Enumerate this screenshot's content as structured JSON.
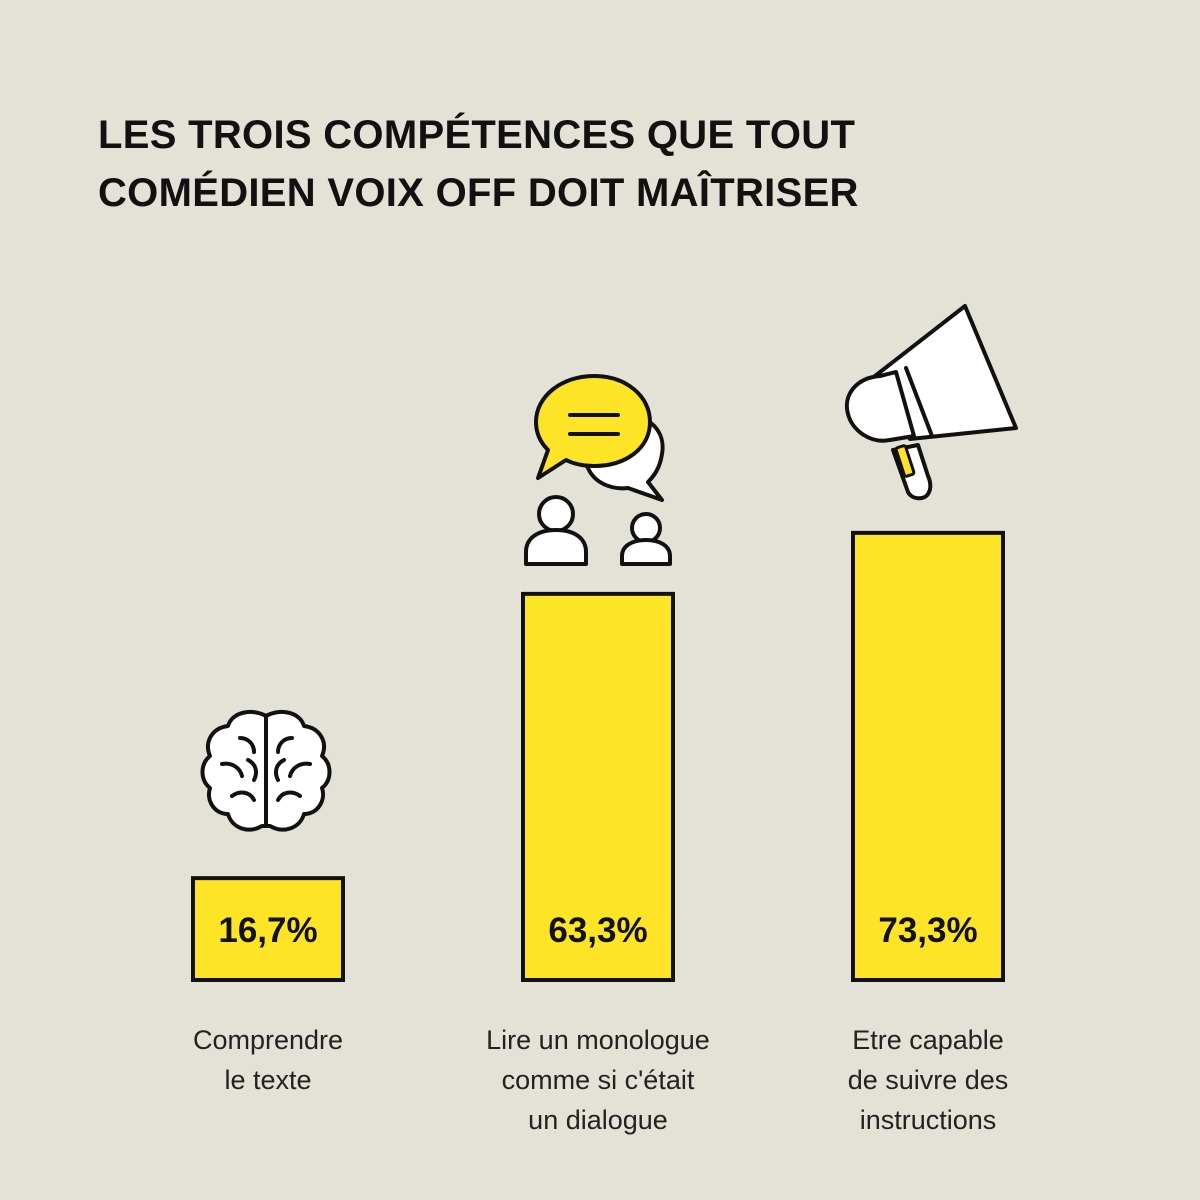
{
  "title_lines": [
    "LES TROIS COMPÉTENCES QUE TOUT",
    "COMÉDIEN VOIX OFF DOIT MAÎTRISER"
  ],
  "colors": {
    "background": "#e4e1d7",
    "bar_fill": "#fde427",
    "stroke": "#111111"
  },
  "chart_data": {
    "type": "bar",
    "title": "LES TROIS COMPÉTENCES QUE TOUT COMÉDIEN VOIX OFF DOIT MAÎTRISER",
    "categories": [
      "Comprendre le texte",
      "Lire un monologue comme si c'était un dialogue",
      "Etre capable de suivre des instructions"
    ],
    "values": [
      16.7,
      63.3,
      73.3
    ],
    "value_labels": [
      "16,7%",
      "63,3%",
      "73,3%"
    ],
    "category_label_lines": [
      [
        "Comprendre",
        "le texte"
      ],
      [
        "Lire un monologue",
        "comme si c'était",
        "un dialogue"
      ],
      [
        "Etre capable",
        "de suivre des",
        "instructions"
      ]
    ],
    "icons": [
      "brain-icon",
      "speech-bubbles-people-icon",
      "megaphone-icon"
    ],
    "unit": "%",
    "grid": false,
    "legend": "none"
  }
}
